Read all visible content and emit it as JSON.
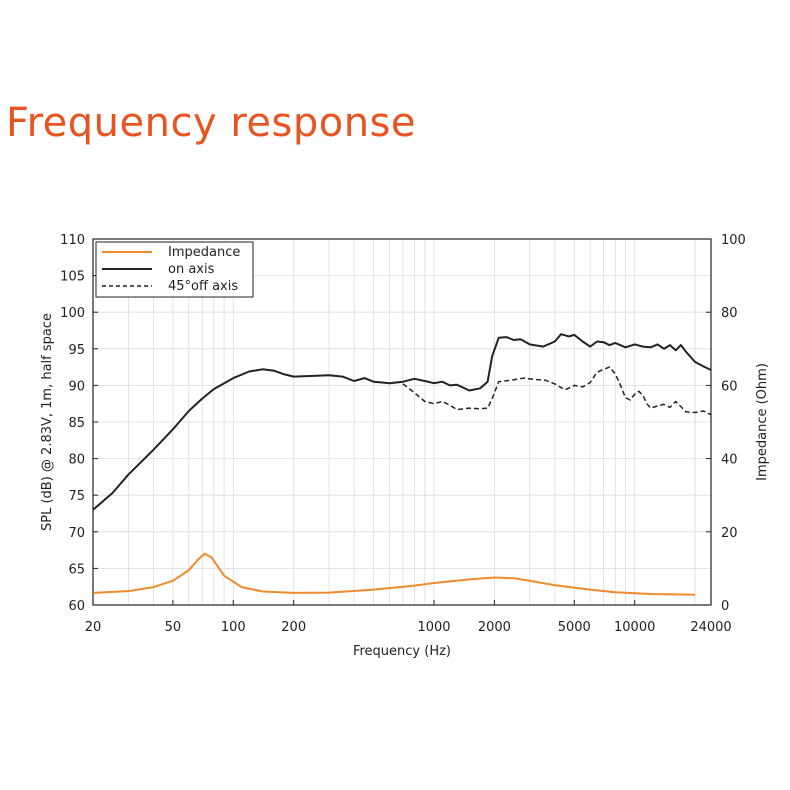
{
  "page": {
    "title": "Frequency response",
    "title_color": "#e8531f"
  },
  "chart_data": {
    "type": "line",
    "xscale": "log",
    "xlim": [
      20,
      24000
    ],
    "ylim": [
      60,
      110
    ],
    "y2lim": [
      0,
      100
    ],
    "xlabel": "Frequency (Hz)",
    "ylabel": "SPL (dB) @ 2.83V, 1m, half space",
    "y2label": "Impedance (Ohm)",
    "xticks": [
      20,
      50,
      100,
      200,
      1000,
      2000,
      5000,
      10000,
      24000
    ],
    "xtick_labels": [
      "20",
      "50",
      "100",
      "200",
      "1000",
      "2000",
      "5000",
      "10000",
      "24000"
    ],
    "yticks": [
      60,
      65,
      70,
      75,
      80,
      85,
      90,
      95,
      100,
      105,
      110
    ],
    "ytick_labels": [
      "60",
      "65",
      "70",
      "75",
      "80",
      "85",
      "90",
      "95",
      "100",
      "105",
      "110"
    ],
    "y2ticks": [
      0,
      20,
      40,
      60,
      80,
      100
    ],
    "y2tick_labels": [
      "0",
      "20",
      "40",
      "60",
      "80",
      "100"
    ],
    "grid": true,
    "legend_position": "top-left",
    "series": [
      {
        "name": "Impedance",
        "axis": "right",
        "color": "#f08a2c",
        "style": "solid",
        "points": [
          [
            20,
            3.3
          ],
          [
            30,
            3.8
          ],
          [
            40,
            4.9
          ],
          [
            50,
            6.6
          ],
          [
            60,
            9.5
          ],
          [
            67,
            12.5
          ],
          [
            72,
            14.0
          ],
          [
            78,
            13.0
          ],
          [
            90,
            8.0
          ],
          [
            110,
            4.9
          ],
          [
            140,
            3.7
          ],
          [
            200,
            3.3
          ],
          [
            300,
            3.4
          ],
          [
            500,
            4.2
          ],
          [
            800,
            5.3
          ],
          [
            1000,
            6.0
          ],
          [
            1500,
            7.0
          ],
          [
            2000,
            7.5
          ],
          [
            2500,
            7.3
          ],
          [
            3000,
            6.6
          ],
          [
            4000,
            5.4
          ],
          [
            6000,
            4.2
          ],
          [
            8000,
            3.5
          ],
          [
            12000,
            3.0
          ],
          [
            20000,
            2.8
          ]
        ]
      },
      {
        "name": "on axis",
        "axis": "left",
        "color": "#222222",
        "style": "solid",
        "points": [
          [
            20,
            73.0
          ],
          [
            25,
            75.3
          ],
          [
            30,
            77.8
          ],
          [
            40,
            81.2
          ],
          [
            50,
            84.0
          ],
          [
            60,
            86.5
          ],
          [
            70,
            88.2
          ],
          [
            80,
            89.5
          ],
          [
            100,
            91.0
          ],
          [
            120,
            91.9
          ],
          [
            140,
            92.2
          ],
          [
            160,
            92.0
          ],
          [
            180,
            91.5
          ],
          [
            200,
            91.2
          ],
          [
            250,
            91.3
          ],
          [
            300,
            91.4
          ],
          [
            350,
            91.2
          ],
          [
            400,
            90.6
          ],
          [
            450,
            91.0
          ],
          [
            500,
            90.5
          ],
          [
            600,
            90.3
          ],
          [
            700,
            90.5
          ],
          [
            800,
            90.9
          ],
          [
            900,
            90.6
          ],
          [
            1000,
            90.3
          ],
          [
            1100,
            90.5
          ],
          [
            1200,
            90.0
          ],
          [
            1300,
            90.1
          ],
          [
            1500,
            89.3
          ],
          [
            1700,
            89.6
          ],
          [
            1850,
            90.5
          ],
          [
            1950,
            94.0
          ],
          [
            2100,
            96.5
          ],
          [
            2300,
            96.6
          ],
          [
            2500,
            96.2
          ],
          [
            2700,
            96.3
          ],
          [
            3000,
            95.6
          ],
          [
            3500,
            95.3
          ],
          [
            4000,
            96.0
          ],
          [
            4300,
            97.0
          ],
          [
            4700,
            96.7
          ],
          [
            5000,
            96.9
          ],
          [
            5500,
            96.0
          ],
          [
            6000,
            95.3
          ],
          [
            6500,
            96.0
          ],
          [
            7000,
            95.9
          ],
          [
            7500,
            95.5
          ],
          [
            8000,
            95.8
          ],
          [
            9000,
            95.2
          ],
          [
            10000,
            95.6
          ],
          [
            11000,
            95.3
          ],
          [
            12000,
            95.2
          ],
          [
            13000,
            95.6
          ],
          [
            14000,
            95.0
          ],
          [
            15000,
            95.5
          ],
          [
            16000,
            94.8
          ],
          [
            17000,
            95.5
          ],
          [
            18000,
            94.6
          ],
          [
            20000,
            93.2
          ],
          [
            22000,
            92.6
          ],
          [
            24000,
            92.1
          ]
        ]
      },
      {
        "name": "45°off axis",
        "axis": "left",
        "color": "#222222",
        "style": "dashed",
        "points": [
          [
            700,
            90.2
          ],
          [
            800,
            89.0
          ],
          [
            900,
            87.8
          ],
          [
            1000,
            87.5
          ],
          [
            1100,
            87.8
          ],
          [
            1200,
            87.3
          ],
          [
            1300,
            86.7
          ],
          [
            1500,
            86.9
          ],
          [
            1700,
            86.8
          ],
          [
            1850,
            86.9
          ],
          [
            1950,
            88.2
          ],
          [
            2100,
            90.5
          ],
          [
            2400,
            90.7
          ],
          [
            2800,
            91.0
          ],
          [
            3200,
            90.8
          ],
          [
            3600,
            90.7
          ],
          [
            4000,
            90.2
          ],
          [
            4500,
            89.4
          ],
          [
            5000,
            90.0
          ],
          [
            5500,
            89.8
          ],
          [
            6000,
            90.4
          ],
          [
            6500,
            91.8
          ],
          [
            7000,
            92.2
          ],
          [
            7500,
            92.5
          ],
          [
            8000,
            91.6
          ],
          [
            8500,
            90.0
          ],
          [
            9000,
            88.3
          ],
          [
            9500,
            88.0
          ],
          [
            10000,
            88.8
          ],
          [
            10500,
            89.2
          ],
          [
            11000,
            88.6
          ],
          [
            11500,
            87.5
          ],
          [
            12000,
            86.9
          ],
          [
            13000,
            87.2
          ],
          [
            14000,
            87.4
          ],
          [
            15000,
            87.0
          ],
          [
            16000,
            87.8
          ],
          [
            17000,
            87.1
          ],
          [
            18000,
            86.4
          ],
          [
            20000,
            86.3
          ],
          [
            22000,
            86.5
          ],
          [
            24000,
            86.0
          ]
        ]
      }
    ]
  }
}
